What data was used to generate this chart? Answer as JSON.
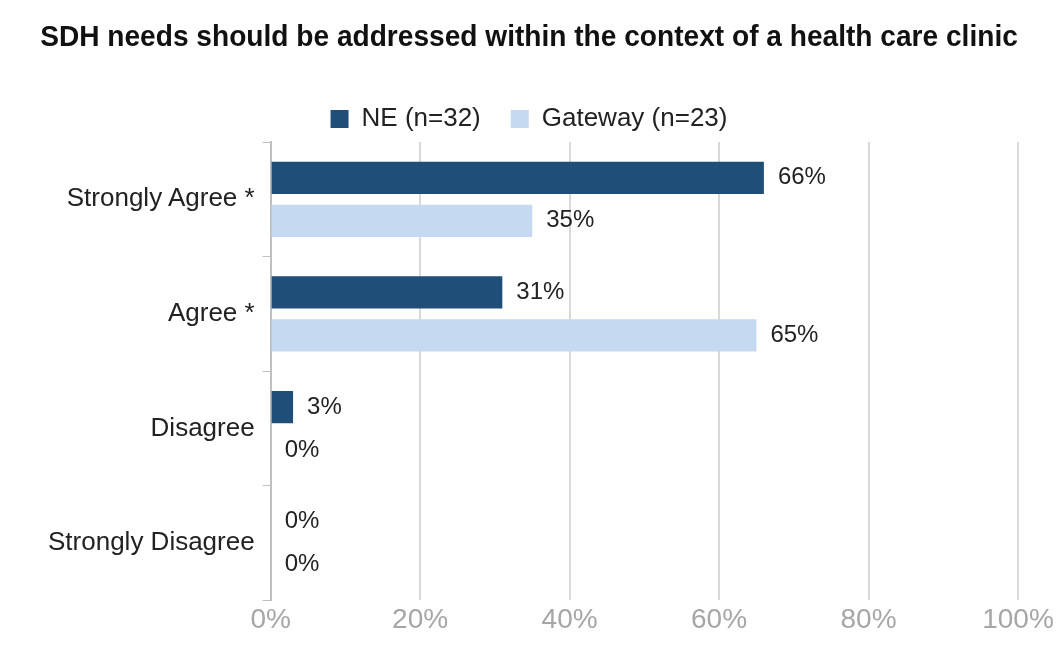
{
  "chart_data": {
    "type": "bar",
    "orientation": "horizontal",
    "title": "SDH needs should be addressed within the context of a health care clinic",
    "categories": [
      "Strongly Agree *",
      "Agree *",
      "Disagree",
      "Strongly Disagree"
    ],
    "series": [
      {
        "name": "NE (n=32)",
        "color": "#1f4e79",
        "values": [
          66,
          31,
          3,
          0
        ],
        "value_labels": [
          "66%",
          "31%",
          "3%",
          "0%"
        ]
      },
      {
        "name": "Gateway (n=23)",
        "color": "#c5d9f1",
        "values": [
          35,
          65,
          0,
          0
        ],
        "value_labels": [
          "35%",
          "65%",
          "0%",
          "0%"
        ]
      }
    ],
    "xlim": [
      0,
      100
    ],
    "xticks": [
      {
        "value": 0,
        "label": "0%"
      },
      {
        "value": 20,
        "label": "20%"
      },
      {
        "value": 40,
        "label": "40%"
      },
      {
        "value": 60,
        "label": "60%"
      },
      {
        "value": 80,
        "label": "80%"
      },
      {
        "value": 100,
        "label": "100%"
      }
    ],
    "grid": "x",
    "legend": "top"
  }
}
